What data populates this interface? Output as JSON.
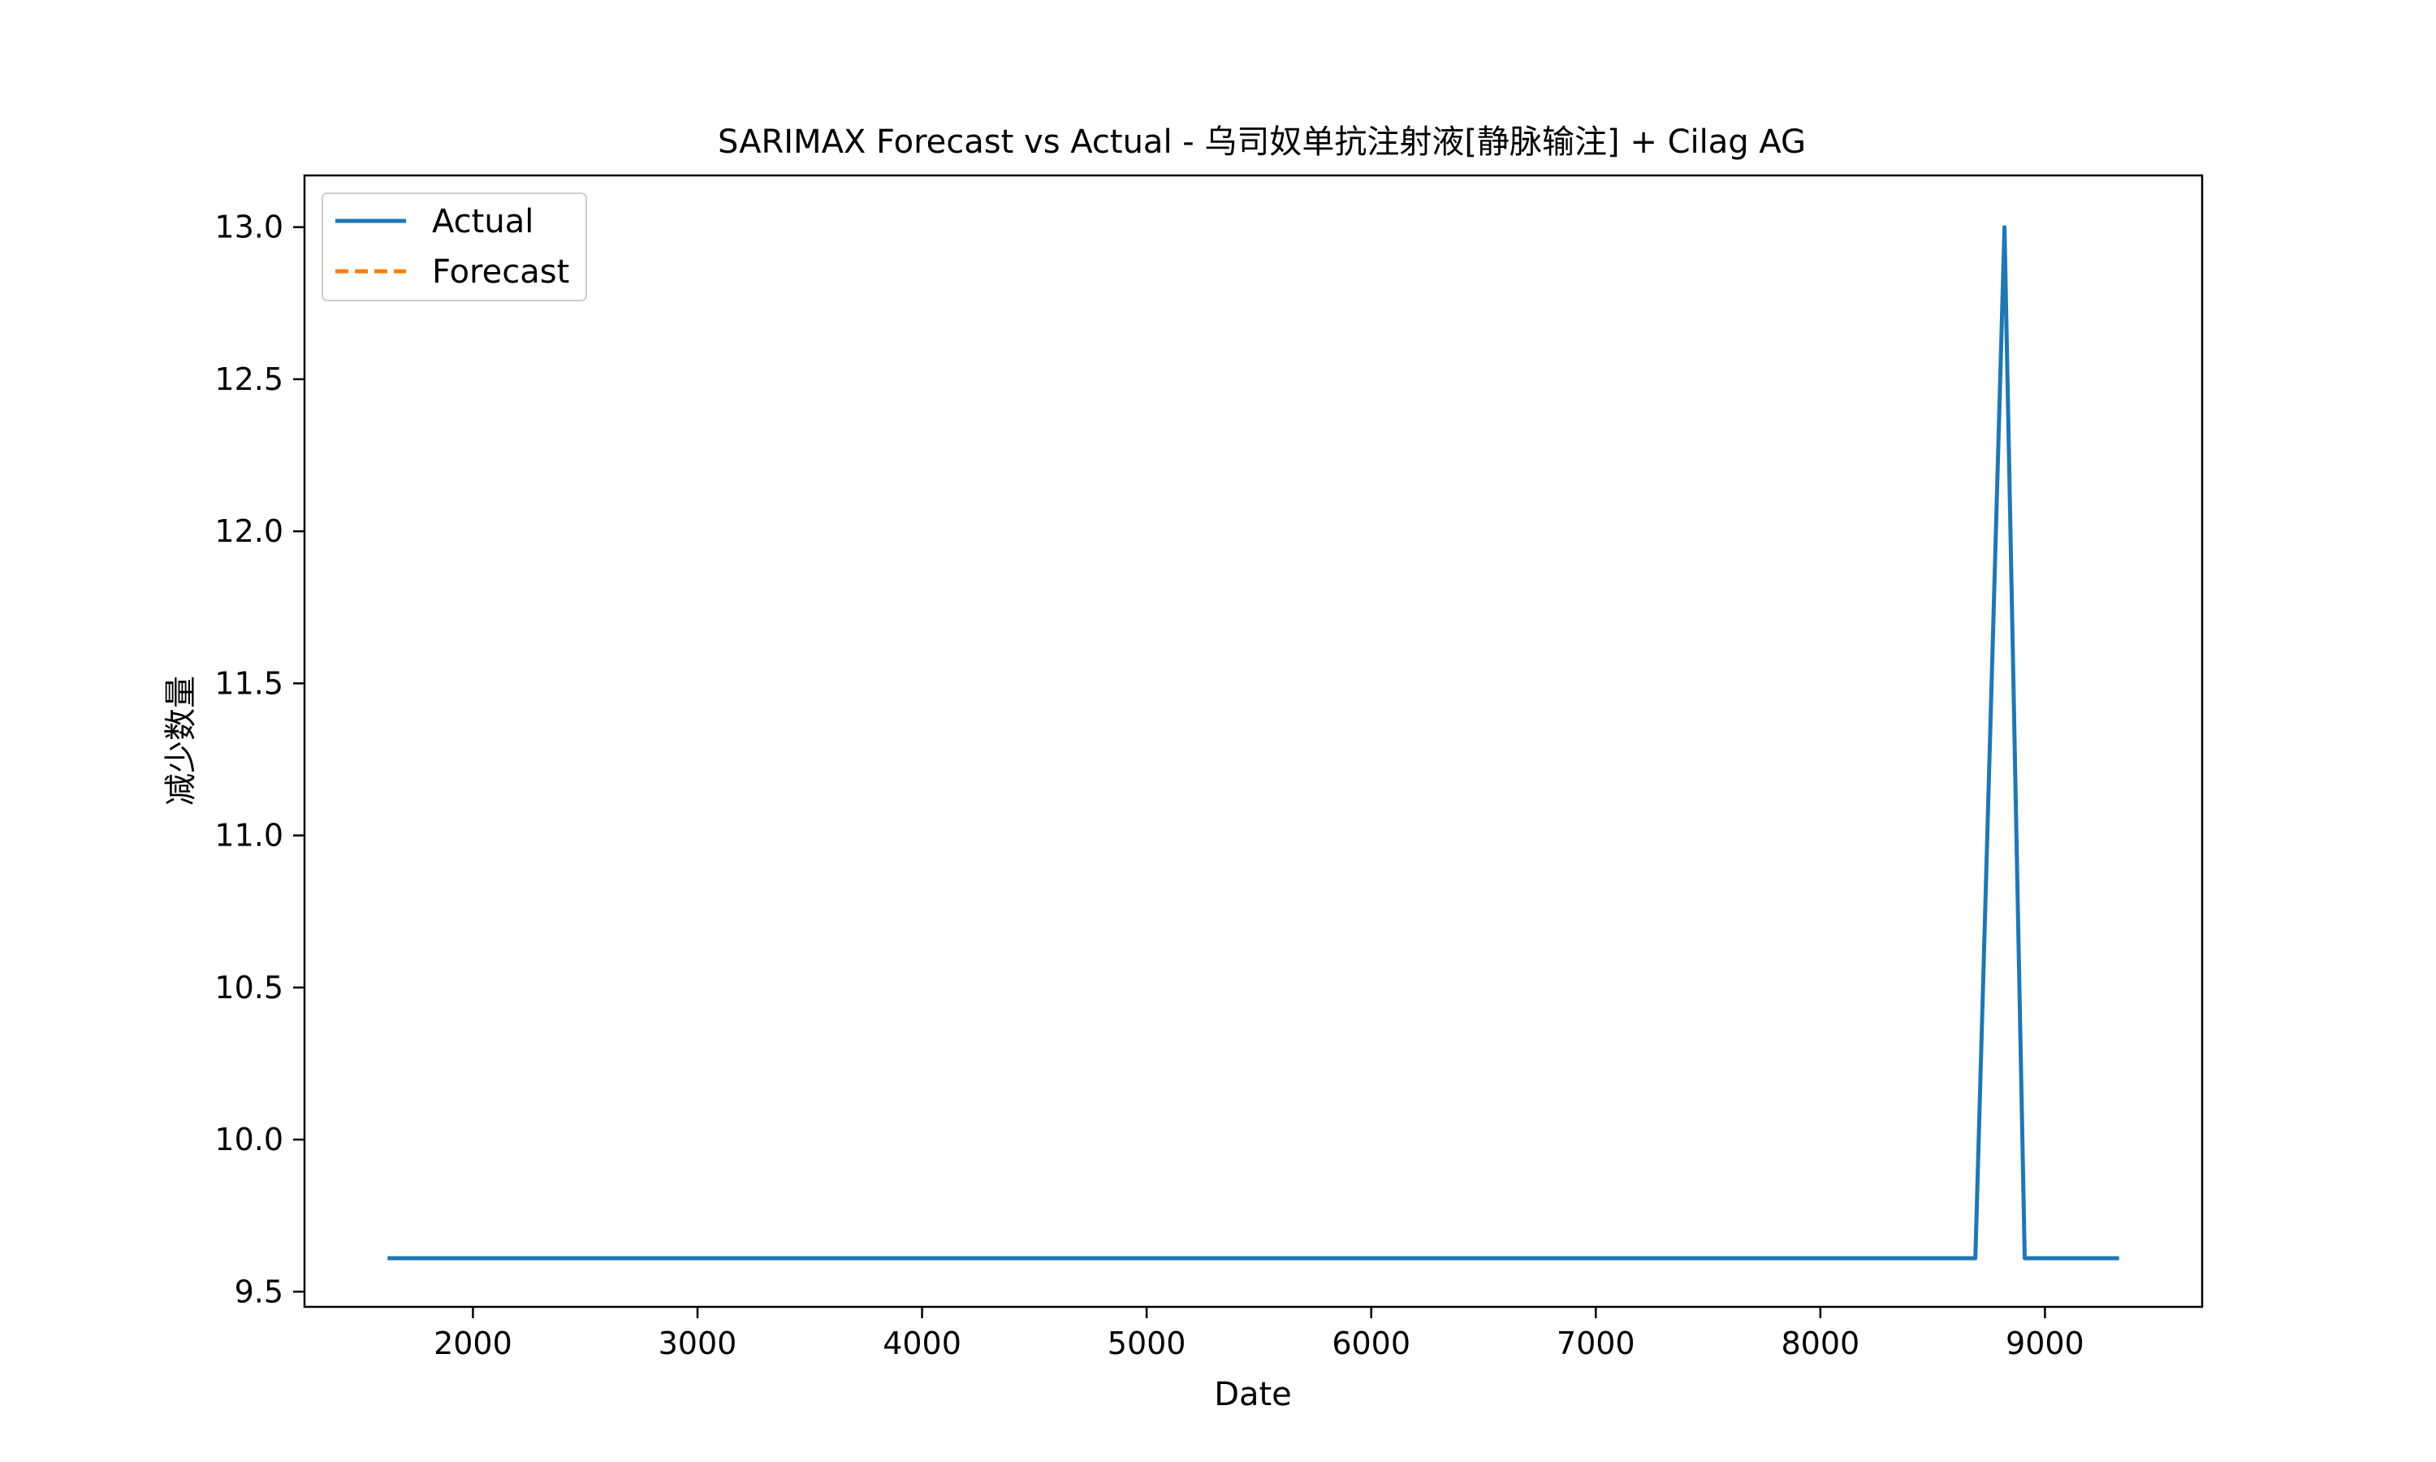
{
  "chart_data": {
    "type": "line",
    "title": "SARIMAX Forecast vs Actual - 乌司奴单抗注射液[静脉输注] + Cilag AG",
    "xlabel": "Date",
    "ylabel": "减少数量",
    "xlim": [
      1250,
      9700
    ],
    "ylim": [
      9.45,
      13.17
    ],
    "x_ticks": [
      2000,
      3000,
      4000,
      5000,
      6000,
      7000,
      8000,
      9000
    ],
    "x_tick_labels": [
      "2000",
      "3000",
      "4000",
      "5000",
      "6000",
      "7000",
      "8000",
      "9000"
    ],
    "y_ticks": [
      9.5,
      10.0,
      10.5,
      11.0,
      11.5,
      12.0,
      12.5,
      13.0
    ],
    "y_tick_labels": [
      "9.5",
      "10.0",
      "10.5",
      "11.0",
      "11.5",
      "12.0",
      "12.5",
      "13.0"
    ],
    "grid": false,
    "legend_position": "top-left",
    "series": [
      {
        "name": "Actual",
        "color": "#1f77b4",
        "style": "solid",
        "x": [
          1620,
          8690,
          8820,
          8910,
          9330
        ],
        "y": [
          9.61,
          9.61,
          13.0,
          9.61,
          9.61
        ]
      },
      {
        "name": "Forecast",
        "color": "#ff7f0e",
        "style": "dashed",
        "x": [],
        "y": []
      }
    ]
  }
}
